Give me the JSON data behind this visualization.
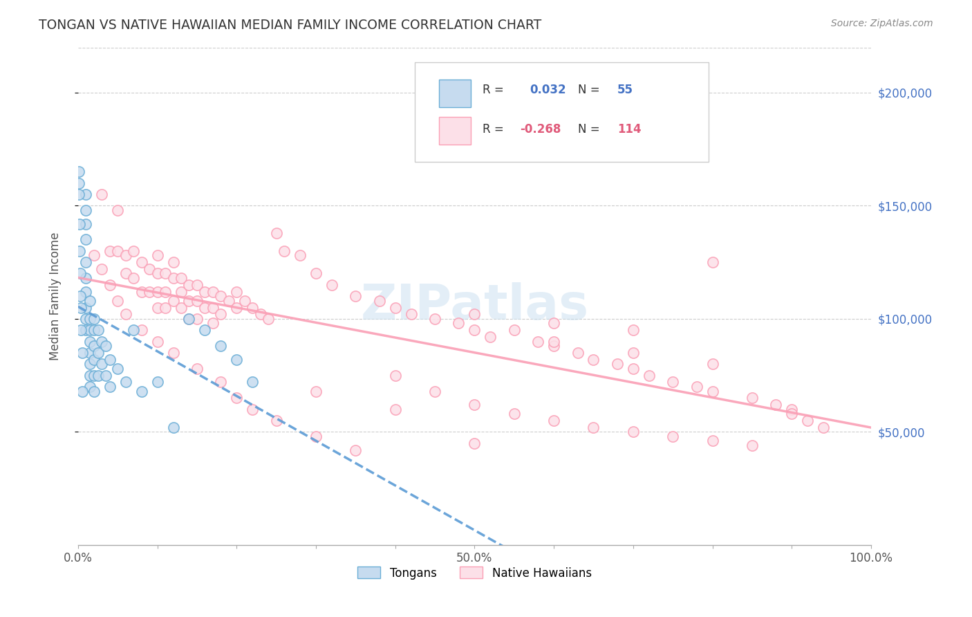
{
  "title": "TONGAN VS NATIVE HAWAIIAN MEDIAN FAMILY INCOME CORRELATION CHART",
  "source": "Source: ZipAtlas.com",
  "xlabel": "",
  "ylabel": "Median Family Income",
  "xlim": [
    0,
    1
  ],
  "ylim": [
    0,
    220000
  ],
  "x_ticks": [
    0,
    0.1,
    0.2,
    0.3,
    0.4,
    0.5,
    0.6,
    0.7,
    0.8,
    0.9,
    1.0
  ],
  "x_tick_labels": [
    "0.0%",
    "",
    "",
    "",
    "",
    "50.0%",
    "",
    "",
    "",
    "",
    "100.0%"
  ],
  "y_tick_labels": [
    "$50,000",
    "$100,000",
    "$150,000",
    "$200,000"
  ],
  "y_ticks": [
    50000,
    100000,
    150000,
    200000
  ],
  "watermark": "ZIPatlas",
  "legend_r1": "R =  0.032",
  "legend_n1": "N =  55",
  "legend_r2": "R = -0.268",
  "legend_n2": "N = 114",
  "blue_color": "#6baed6",
  "blue_fill": "#c6dbef",
  "pink_color": "#fa9fb5",
  "pink_fill": "#fce0e8",
  "trend_blue": "#90c4e4",
  "trend_pink": "#f48fb1",
  "title_color": "#333333",
  "axis_label_color": "#555555",
  "tick_color_right": "#4472c4",
  "grid_color": "#cccccc",
  "tongans_x": [
    0.01,
    0.01,
    0.01,
    0.01,
    0.01,
    0.01,
    0.01,
    0.01,
    0.01,
    0.01,
    0.015,
    0.015,
    0.015,
    0.015,
    0.015,
    0.015,
    0.015,
    0.015,
    0.02,
    0.02,
    0.02,
    0.02,
    0.02,
    0.02,
    0.025,
    0.025,
    0.025,
    0.03,
    0.03,
    0.035,
    0.035,
    0.04,
    0.04,
    0.05,
    0.06,
    0.07,
    0.08,
    0.1,
    0.12,
    0.14,
    0.16,
    0.18,
    0.2,
    0.22,
    0.001,
    0.001,
    0.001,
    0.002,
    0.002,
    0.003,
    0.003,
    0.004,
    0.004,
    0.005,
    0.005
  ],
  "tongans_y": [
    155000,
    148000,
    142000,
    135000,
    125000,
    118000,
    112000,
    105000,
    100000,
    95000,
    108000,
    100000,
    95000,
    90000,
    85000,
    80000,
    75000,
    70000,
    100000,
    95000,
    88000,
    82000,
    75000,
    68000,
    95000,
    85000,
    75000,
    90000,
    80000,
    88000,
    75000,
    82000,
    70000,
    78000,
    72000,
    95000,
    68000,
    72000,
    52000,
    100000,
    95000,
    88000,
    82000,
    72000,
    165000,
    160000,
    155000,
    142000,
    130000,
    120000,
    110000,
    105000,
    95000,
    85000,
    68000
  ],
  "hawaiians_x": [
    0.03,
    0.04,
    0.05,
    0.05,
    0.06,
    0.06,
    0.07,
    0.07,
    0.08,
    0.08,
    0.09,
    0.09,
    0.1,
    0.1,
    0.1,
    0.1,
    0.11,
    0.11,
    0.11,
    0.12,
    0.12,
    0.12,
    0.13,
    0.13,
    0.13,
    0.14,
    0.14,
    0.14,
    0.15,
    0.15,
    0.15,
    0.16,
    0.16,
    0.17,
    0.17,
    0.17,
    0.18,
    0.18,
    0.19,
    0.2,
    0.2,
    0.21,
    0.22,
    0.23,
    0.24,
    0.25,
    0.26,
    0.28,
    0.3,
    0.32,
    0.35,
    0.38,
    0.4,
    0.42,
    0.45,
    0.48,
    0.5,
    0.52,
    0.55,
    0.58,
    0.6,
    0.63,
    0.65,
    0.68,
    0.7,
    0.72,
    0.75,
    0.78,
    0.8,
    0.85,
    0.88,
    0.9,
    0.5,
    0.6,
    0.7,
    0.8,
    0.02,
    0.03,
    0.04,
    0.05,
    0.06,
    0.08,
    0.1,
    0.12,
    0.15,
    0.18,
    0.2,
    0.22,
    0.25,
    0.3,
    0.35,
    0.4,
    0.45,
    0.5,
    0.55,
    0.6,
    0.65,
    0.7,
    0.75,
    0.8,
    0.85,
    0.9,
    0.92,
    0.94,
    0.6,
    0.7,
    0.8,
    0.5,
    0.3,
    0.4
  ],
  "hawaiians_y": [
    155000,
    130000,
    148000,
    130000,
    128000,
    120000,
    130000,
    118000,
    125000,
    112000,
    122000,
    112000,
    128000,
    120000,
    112000,
    105000,
    120000,
    112000,
    105000,
    125000,
    118000,
    108000,
    118000,
    112000,
    105000,
    115000,
    108000,
    100000,
    115000,
    108000,
    100000,
    112000,
    105000,
    112000,
    105000,
    98000,
    110000,
    102000,
    108000,
    112000,
    105000,
    108000,
    105000,
    102000,
    100000,
    138000,
    130000,
    128000,
    120000,
    115000,
    110000,
    108000,
    105000,
    102000,
    100000,
    98000,
    95000,
    92000,
    95000,
    90000,
    88000,
    85000,
    82000,
    80000,
    78000,
    75000,
    72000,
    70000,
    68000,
    65000,
    62000,
    60000,
    102000,
    98000,
    95000,
    125000,
    128000,
    122000,
    115000,
    108000,
    102000,
    95000,
    90000,
    85000,
    78000,
    72000,
    65000,
    60000,
    55000,
    48000,
    42000,
    75000,
    68000,
    62000,
    58000,
    55000,
    52000,
    50000,
    48000,
    46000,
    44000,
    58000,
    55000,
    52000,
    90000,
    85000,
    80000,
    45000,
    68000,
    60000
  ]
}
